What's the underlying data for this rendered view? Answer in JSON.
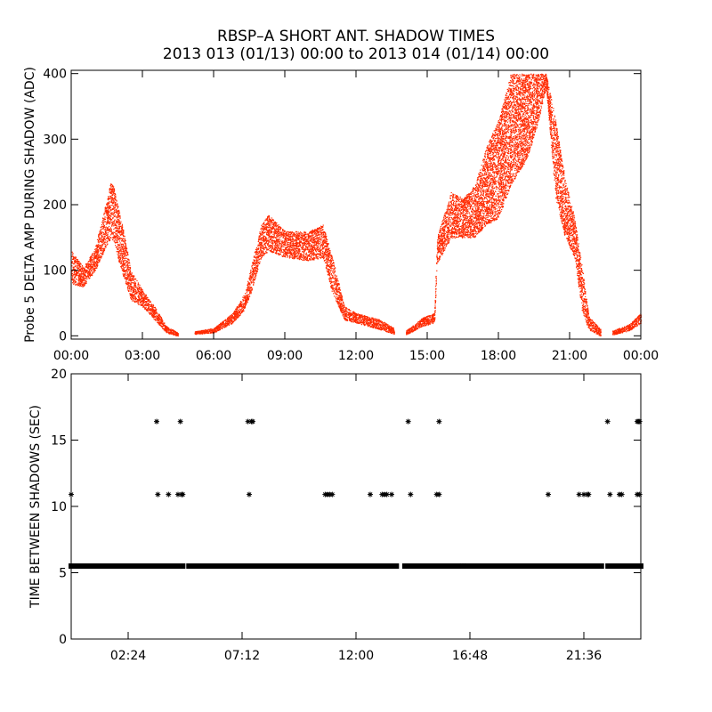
{
  "title": "RBSP–A SHORT ANT. SHADOW TIMES",
  "subtitle": "2013 013 (01/13) 00:00 to 2013 014 (01/14) 00:00",
  "colors": {
    "top_points": "#ff2a00",
    "bottom_points": "#000000",
    "axes": "#000000"
  },
  "chart_data": [
    {
      "type": "scatter",
      "ylabel": "Probe 5 DELTA AMP DURING SHADOW (ADC)",
      "xlabel": "",
      "xlim": [
        0,
        24
      ],
      "ylim": [
        -5,
        405
      ],
      "xticks": [
        {
          "v": 0,
          "label": "00:00"
        },
        {
          "v": 3,
          "label": "03:00"
        },
        {
          "v": 6,
          "label": "06:00"
        },
        {
          "v": 9,
          "label": "09:00"
        },
        {
          "v": 12,
          "label": "12:00"
        },
        {
          "v": 15,
          "label": "15:00"
        },
        {
          "v": 18,
          "label": "18:00"
        },
        {
          "v": 21,
          "label": "21:00"
        },
        {
          "v": 24,
          "label": "00:00"
        }
      ],
      "yticks": [
        {
          "v": 0,
          "label": "0"
        },
        {
          "v": 100,
          "label": "100"
        },
        {
          "v": 200,
          "label": "200"
        },
        {
          "v": 300,
          "label": "300"
        },
        {
          "v": 400,
          "label": "400"
        }
      ],
      "marker": "dot",
      "envelope": [
        {
          "x": 0.0,
          "low": 80,
          "high": 130
        },
        {
          "x": 0.5,
          "low": 75,
          "high": 105
        },
        {
          "x": 1.0,
          "low": 100,
          "high": 135
        },
        {
          "x": 1.5,
          "low": 140,
          "high": 210
        },
        {
          "x": 1.7,
          "low": 150,
          "high": 240
        },
        {
          "x": 2.2,
          "low": 90,
          "high": 160
        },
        {
          "x": 2.5,
          "low": 55,
          "high": 100
        },
        {
          "x": 3.0,
          "low": 45,
          "high": 70
        },
        {
          "x": 3.5,
          "low": 25,
          "high": 45
        },
        {
          "x": 4.0,
          "low": 5,
          "high": 15
        },
        {
          "x": 4.5,
          "low": 0,
          "high": 5
        },
        {
          "x": 4.8,
          "low": null,
          "high": null
        },
        {
          "x": 5.2,
          "low": 3,
          "high": 7
        },
        {
          "x": 6.0,
          "low": 5,
          "high": 12
        },
        {
          "x": 6.8,
          "low": 20,
          "high": 35
        },
        {
          "x": 7.3,
          "low": 40,
          "high": 65
        },
        {
          "x": 7.6,
          "low": 70,
          "high": 110
        },
        {
          "x": 8.0,
          "low": 120,
          "high": 170
        },
        {
          "x": 8.3,
          "low": 130,
          "high": 185
        },
        {
          "x": 9.0,
          "low": 120,
          "high": 160
        },
        {
          "x": 10.0,
          "low": 115,
          "high": 160
        },
        {
          "x": 10.6,
          "low": 120,
          "high": 170
        },
        {
          "x": 11.0,
          "low": 65,
          "high": 120
        },
        {
          "x": 11.5,
          "low": 25,
          "high": 45
        },
        {
          "x": 12.0,
          "low": 20,
          "high": 35
        },
        {
          "x": 13.0,
          "low": 10,
          "high": 25
        },
        {
          "x": 13.6,
          "low": 3,
          "high": 12
        },
        {
          "x": 14.0,
          "low": null,
          "high": null
        },
        {
          "x": 14.1,
          "low": 2,
          "high": 8
        },
        {
          "x": 14.8,
          "low": 15,
          "high": 28
        },
        {
          "x": 15.3,
          "low": 20,
          "high": 35
        },
        {
          "x": 15.4,
          "low": 110,
          "high": 150
        },
        {
          "x": 16.0,
          "low": 150,
          "high": 220
        },
        {
          "x": 16.5,
          "low": 150,
          "high": 210
        },
        {
          "x": 17.0,
          "low": 150,
          "high": 230
        },
        {
          "x": 17.5,
          "low": 170,
          "high": 290
        },
        {
          "x": 18.0,
          "low": 180,
          "high": 330
        },
        {
          "x": 18.5,
          "low": 230,
          "high": 400
        },
        {
          "x": 19.2,
          "low": 270,
          "high": 400
        },
        {
          "x": 19.7,
          "low": 330,
          "high": 400
        },
        {
          "x": 20.0,
          "low": 380,
          "high": 400
        },
        {
          "x": 20.4,
          "low": 210,
          "high": 330
        },
        {
          "x": 20.8,
          "low": 150,
          "high": 240
        },
        {
          "x": 21.2,
          "low": 120,
          "high": 180
        },
        {
          "x": 21.5,
          "low": 40,
          "high": 110
        },
        {
          "x": 21.8,
          "low": 10,
          "high": 30
        },
        {
          "x": 22.3,
          "low": 0,
          "high": 10
        },
        {
          "x": 22.6,
          "low": null,
          "high": null
        },
        {
          "x": 22.8,
          "low": 2,
          "high": 8
        },
        {
          "x": 23.5,
          "low": 8,
          "high": 18
        },
        {
          "x": 24.0,
          "low": 20,
          "high": 35
        }
      ]
    },
    {
      "type": "scatter",
      "ylabel": "TIME BETWEEN SHADOWS (SEC)",
      "xlabel": "",
      "xlim": [
        0,
        24
      ],
      "ylim": [
        0,
        20
      ],
      "xticks": [
        {
          "v": 2.4,
          "label": "02:24"
        },
        {
          "v": 7.2,
          "label": "07:12"
        },
        {
          "v": 12.0,
          "label": "12:00"
        },
        {
          "v": 16.8,
          "label": "16:48"
        },
        {
          "v": 21.6,
          "label": "21:36"
        }
      ],
      "yticks": [
        {
          "v": 0,
          "label": "0"
        },
        {
          "v": 5,
          "label": "5"
        },
        {
          "v": 10,
          "label": "10"
        },
        {
          "v": 15,
          "label": "15"
        },
        {
          "v": 20,
          "label": "20"
        }
      ],
      "marker": "asterisk",
      "baseline_value": 5.5,
      "baseline_gaps": [
        [
          4.7,
          4.95
        ],
        [
          13.7,
          14.05
        ],
        [
          22.35,
          22.6
        ]
      ],
      "points": [
        {
          "x": 0.0,
          "y": 10.9
        },
        {
          "x": 3.6,
          "y": 16.4
        },
        {
          "x": 3.65,
          "y": 10.9
        },
        {
          "x": 4.1,
          "y": 10.9
        },
        {
          "x": 4.5,
          "y": 10.9
        },
        {
          "x": 4.6,
          "y": 16.4
        },
        {
          "x": 4.65,
          "y": 10.9
        },
        {
          "x": 4.7,
          "y": 10.9
        },
        {
          "x": 7.45,
          "y": 16.4
        },
        {
          "x": 7.5,
          "y": 10.9
        },
        {
          "x": 7.6,
          "y": 16.4
        },
        {
          "x": 7.65,
          "y": 16.4
        },
        {
          "x": 10.7,
          "y": 10.9
        },
        {
          "x": 10.8,
          "y": 10.9
        },
        {
          "x": 10.9,
          "y": 10.9
        },
        {
          "x": 11.0,
          "y": 10.9
        },
        {
          "x": 12.6,
          "y": 10.9
        },
        {
          "x": 13.1,
          "y": 10.9
        },
        {
          "x": 13.2,
          "y": 10.9
        },
        {
          "x": 13.3,
          "y": 10.9
        },
        {
          "x": 13.5,
          "y": 10.9
        },
        {
          "x": 14.2,
          "y": 16.4
        },
        {
          "x": 14.3,
          "y": 10.9
        },
        {
          "x": 15.5,
          "y": 16.4
        },
        {
          "x": 15.4,
          "y": 10.9
        },
        {
          "x": 15.5,
          "y": 10.9
        },
        {
          "x": 20.1,
          "y": 10.9
        },
        {
          "x": 21.4,
          "y": 10.9
        },
        {
          "x": 21.6,
          "y": 10.9
        },
        {
          "x": 21.8,
          "y": 10.9
        },
        {
          "x": 21.75,
          "y": 10.9
        },
        {
          "x": 22.6,
          "y": 16.4
        },
        {
          "x": 22.7,
          "y": 10.9
        },
        {
          "x": 23.1,
          "y": 10.9
        },
        {
          "x": 23.2,
          "y": 10.9
        },
        {
          "x": 23.85,
          "y": 16.4
        },
        {
          "x": 23.9,
          "y": 16.4
        },
        {
          "x": 23.95,
          "y": 16.4
        },
        {
          "x": 23.85,
          "y": 10.9
        },
        {
          "x": 23.95,
          "y": 10.9
        },
        {
          "x": 16.4,
          "y": 5.5
        },
        {
          "x": 16.5,
          "y": 5.5
        },
        {
          "x": 16.6,
          "y": 5.5
        }
      ]
    }
  ]
}
